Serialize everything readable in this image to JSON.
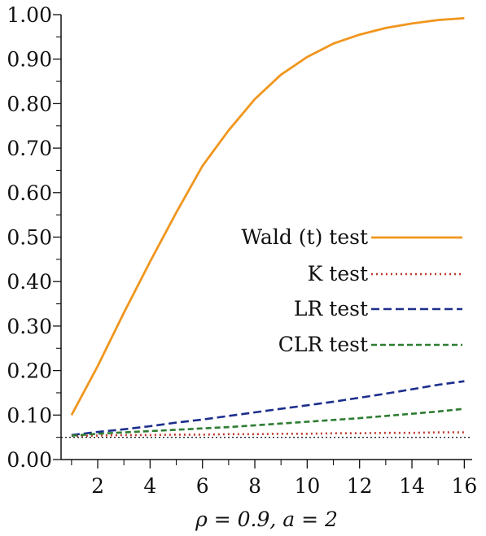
{
  "chart_data": {
    "type": "line",
    "xlabel": "ρ = 0.9, a = 2",
    "ylabel": "",
    "xlim": [
      0.6,
      16.3
    ],
    "ylim": [
      0,
      1
    ],
    "x_ticks": [
      2,
      4,
      6,
      8,
      10,
      12,
      14,
      16
    ],
    "x_minor_ticks": [
      1,
      3,
      5,
      7,
      9,
      11,
      13,
      15
    ],
    "y_ticks": [
      "0.00",
      "0.10",
      "0.20",
      "0.30",
      "0.40",
      "0.50",
      "0.60",
      "0.70",
      "0.80",
      "0.90",
      "1.00"
    ],
    "legend_position": "center-right",
    "reference_line": 0.05,
    "x": [
      1,
      2,
      3,
      4,
      5,
      6,
      7,
      8,
      9,
      10,
      11,
      12,
      13,
      14,
      15,
      16
    ],
    "series": [
      {
        "name": "Wald (t) test",
        "color": "#f0961e",
        "style": "solid",
        "values": [
          0.1,
          0.21,
          0.33,
          0.445,
          0.555,
          0.66,
          0.74,
          0.81,
          0.865,
          0.905,
          0.935,
          0.955,
          0.97,
          0.98,
          0.988,
          0.992
        ]
      },
      {
        "name": "K test",
        "color": "#c0392b",
        "style": "dotted",
        "values": [
          0.053,
          0.054,
          0.055,
          0.055,
          0.056,
          0.056,
          0.057,
          0.057,
          0.058,
          0.058,
          0.059,
          0.059,
          0.06,
          0.06,
          0.061,
          0.061
        ]
      },
      {
        "name": "LR test",
        "color": "#1c2f8c",
        "style": "dashed",
        "values": [
          0.055,
          0.062,
          0.068,
          0.075,
          0.083,
          0.09,
          0.098,
          0.106,
          0.114,
          0.122,
          0.13,
          0.139,
          0.148,
          0.158,
          0.168,
          0.176
        ]
      },
      {
        "name": "CLR test",
        "color": "#2e7d32",
        "style": "dashed",
        "values": [
          0.054,
          0.058,
          0.061,
          0.064,
          0.067,
          0.07,
          0.073,
          0.077,
          0.081,
          0.085,
          0.089,
          0.093,
          0.098,
          0.103,
          0.108,
          0.114
        ]
      }
    ]
  }
}
